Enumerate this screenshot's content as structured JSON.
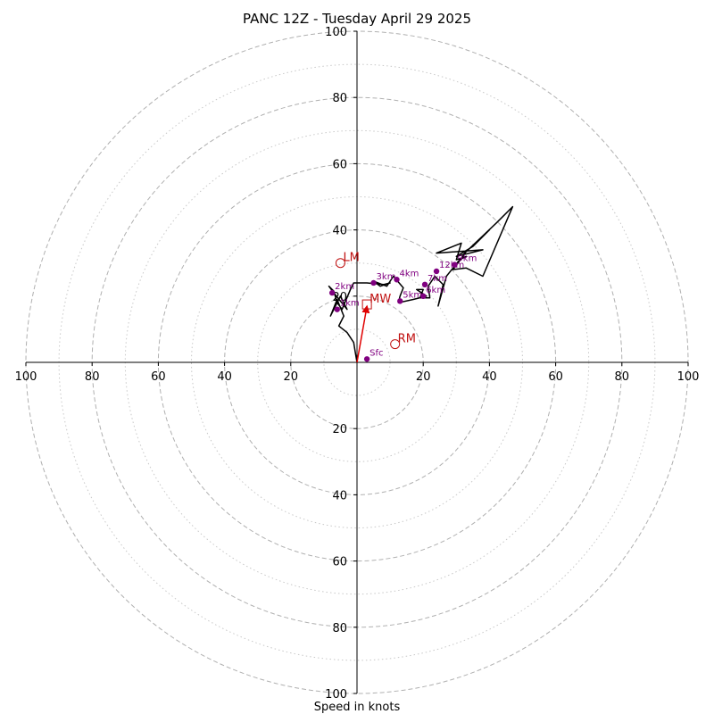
{
  "chart_data": {
    "type": "scatter",
    "title": "PANC 12Z - Tuesday April 29 2025",
    "xlabel": "Speed in knots",
    "xlim": [
      -100,
      100
    ],
    "ylim": [
      -100,
      100
    ],
    "rings_major": [
      20,
      40,
      60,
      80,
      100
    ],
    "rings_minor": [
      10,
      30,
      50,
      70,
      90
    ],
    "x_tick_labels": [
      "100",
      "80",
      "60",
      "40",
      "20",
      "20",
      "40",
      "60",
      "80",
      "100"
    ],
    "x_tick_values": [
      -100,
      -80,
      -60,
      -40,
      -20,
      20,
      40,
      60,
      80,
      100
    ],
    "y_tick_labels": [
      "100",
      "80",
      "60",
      "40",
      "20",
      "20",
      "40",
      "60",
      "80",
      "100"
    ],
    "y_tick_values": [
      100,
      80,
      60,
      40,
      20,
      -20,
      -40,
      -60,
      -80,
      -100
    ],
    "hodograph_line": [
      [
        0,
        0
      ],
      [
        -0.5,
        3
      ],
      [
        -1,
        6
      ],
      [
        -3,
        9
      ],
      [
        -5.5,
        11
      ],
      [
        -4,
        14
      ],
      [
        -6,
        19
      ],
      [
        -8,
        14
      ],
      [
        -5,
        20
      ],
      [
        -3,
        16
      ],
      [
        -7,
        21
      ],
      [
        -8.5,
        23
      ],
      [
        -7,
        21.5
      ],
      [
        -6,
        18
      ],
      [
        -4.5,
        16
      ],
      [
        -2,
        22
      ],
      [
        -1,
        24
      ],
      [
        3,
        24
      ],
      [
        8,
        23.5
      ],
      [
        10,
        24
      ],
      [
        7,
        23
      ],
      [
        5,
        24.5
      ],
      [
        9,
        23
      ],
      [
        11,
        26
      ],
      [
        14,
        22.5
      ],
      [
        13,
        20
      ],
      [
        12.5,
        18
      ],
      [
        17,
        19
      ],
      [
        21,
        20
      ],
      [
        18,
        22
      ],
      [
        20,
        22
      ],
      [
        19,
        19.5
      ],
      [
        22,
        19.5
      ],
      [
        21.5,
        23
      ],
      [
        23.5,
        26
      ],
      [
        25,
        24.5
      ],
      [
        26,
        23.5
      ],
      [
        24.5,
        17
      ],
      [
        27,
        26
      ],
      [
        29,
        28.5
      ],
      [
        31,
        31
      ],
      [
        33,
        32
      ],
      [
        30,
        31
      ],
      [
        31.5,
        36
      ],
      [
        24,
        33
      ],
      [
        38,
        34
      ],
      [
        30,
        32
      ],
      [
        35,
        35
      ],
      [
        40,
        40
      ],
      [
        32,
        32.5
      ],
      [
        42,
        42
      ],
      [
        44,
        44
      ],
      [
        47,
        47
      ],
      [
        38,
        26
      ],
      [
        33,
        28.5
      ],
      [
        29,
        28
      ],
      [
        32,
        32
      ],
      [
        33,
        33.5
      ]
    ],
    "height_markers": [
      {
        "label": "Sfc",
        "u": 3,
        "v": 1
      },
      {
        "label": "1km",
        "u": -6,
        "v": 16
      },
      {
        "label": "2km",
        "u": -7.5,
        "v": 21
      },
      {
        "label": "3km",
        "u": 5,
        "v": 24
      },
      {
        "label": "4km",
        "u": 12,
        "v": 25
      },
      {
        "label": "5km",
        "u": 13,
        "v": 18.5
      },
      {
        "label": "6km",
        "u": 20,
        "v": 20
      },
      {
        "label": "7km",
        "u": 20.5,
        "v": 23.5
      },
      {
        "label": "9km",
        "u": 29.5,
        "v": 29.5
      },
      {
        "label": "12km",
        "u": 24,
        "v": 27.5
      }
    ],
    "motion_markers": [
      {
        "label": "LM",
        "u": -5,
        "v": 30,
        "shape": "circle"
      },
      {
        "label": "RM",
        "u": 11.5,
        "v": 5.5,
        "shape": "circle"
      },
      {
        "label": "MW",
        "u": 3,
        "v": 17.5,
        "shape": "square"
      }
    ],
    "storm_vector": [
      0,
      0,
      3,
      17.5
    ],
    "colors": {
      "hodograph": "#000000",
      "height": "#800080",
      "motion": "#c01010",
      "ring": "#b0b0b0"
    }
  }
}
